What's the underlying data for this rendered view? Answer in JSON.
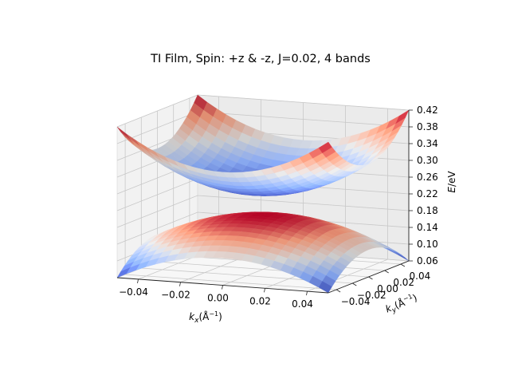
{
  "chart_data": {
    "type": "surface",
    "title": "TI Film, Spin: +z & -z, J=0.02, 4 bands",
    "xlabel": "k_x(Å⁻¹)",
    "ylabel": "k_y(Å⁻¹)",
    "zlabel": "E/eV",
    "x_range": [
      -0.05,
      0.05
    ],
    "y_range": [
      -0.05,
      0.05
    ],
    "z_range": [
      0.06,
      0.42
    ],
    "x_ticks": [
      "−0.04",
      "−0.02",
      "0.00",
      "0.02",
      "0.04"
    ],
    "y_ticks": [
      "−0.04",
      "−0.02",
      "0.00",
      "0.02",
      "0.04"
    ],
    "z_ticks": [
      "0.06",
      "0.10",
      "0.14",
      "0.18",
      "0.22",
      "0.26",
      "0.30",
      "0.34",
      "0.38",
      "0.42"
    ],
    "colormap": "coolwarm",
    "grid": true,
    "series": [
      {
        "surface": "upper band",
        "center_energy": 0.24,
        "corner_energy": 0.42,
        "shape": "bowl"
      },
      {
        "surface": "lower band",
        "center_energy": 0.19,
        "corner_energy": 0.06,
        "shape": "dome"
      }
    ]
  }
}
